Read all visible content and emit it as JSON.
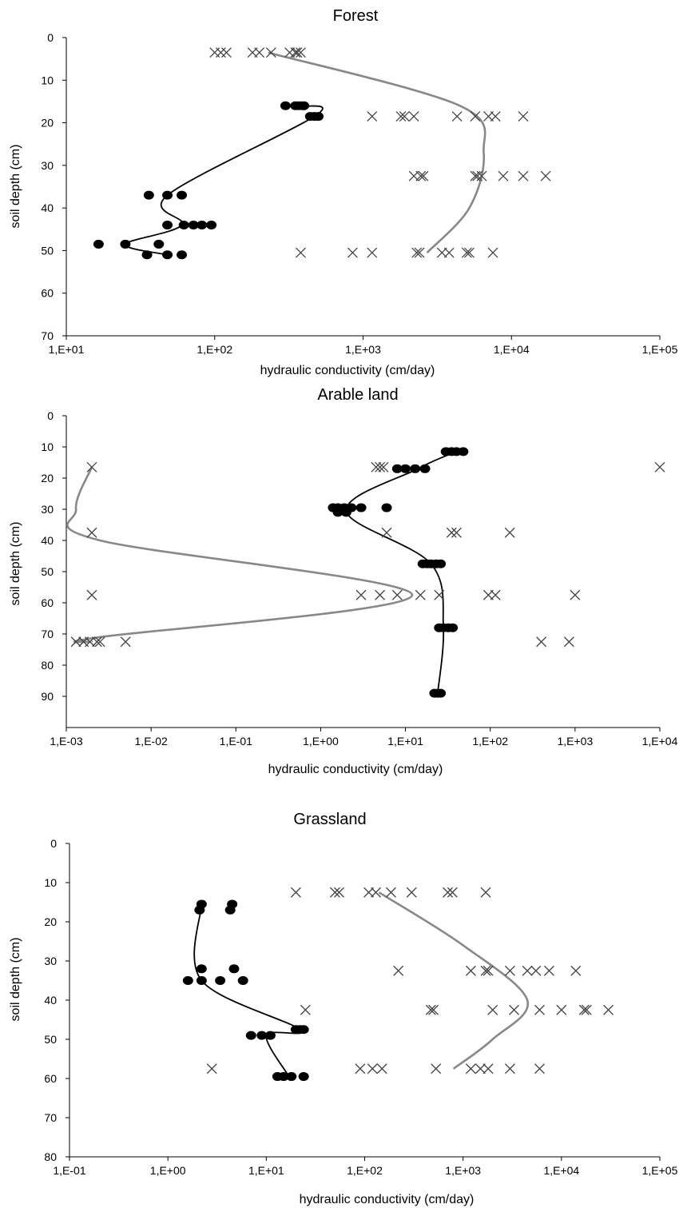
{
  "colors": {
    "measured": "#000000",
    "fitted": "#888888",
    "cross": "#444444"
  },
  "chart_data": [
    {
      "type": "scatter",
      "title": "Forest",
      "xlabel": "hydraulic conductivity (cm/day)",
      "ylabel": "soil depth (cm)",
      "x_scale": "log",
      "xlim": [
        10,
        100000
      ],
      "ylim": [
        0,
        70
      ],
      "x_ticks": [
        10,
        100,
        1000,
        10000,
        100000
      ],
      "x_tick_labels": [
        "1,E+01",
        "1,E+02",
        "1,E+03",
        "1,E+04",
        "1,E+05"
      ],
      "y_ticks": [
        0,
        10,
        20,
        30,
        40,
        50,
        60,
        70
      ],
      "y_tick_labels": [
        "0",
        "10",
        "20",
        "30",
        "40",
        "50",
        "60",
        "70"
      ],
      "series": [
        {
          "marker": "dot",
          "points": [
            [
              300,
              16
            ],
            [
              350,
              16
            ],
            [
              370,
              16
            ],
            [
              390,
              16
            ],
            [
              400,
              16
            ],
            [
              440,
              18.5
            ],
            [
              470,
              18.5
            ],
            [
              500,
              18.5
            ],
            [
              36,
              37
            ],
            [
              48,
              37
            ],
            [
              60,
              37
            ],
            [
              48,
              44
            ],
            [
              62,
              44
            ],
            [
              72,
              44
            ],
            [
              82,
              44
            ],
            [
              95,
              44
            ],
            [
              16.5,
              48.5
            ],
            [
              25,
              48.5
            ],
            [
              42,
              48.5
            ],
            [
              35,
              51
            ],
            [
              48,
              51
            ],
            [
              60,
              51
            ]
          ]
        },
        {
          "marker": "line",
          "points": [
            [
              400,
              16
            ],
            [
              470,
              18.5
            ],
            [
              48,
              37
            ],
            [
              60,
              44
            ],
            [
              25,
              48.5
            ],
            [
              48,
              51
            ]
          ]
        },
        {
          "marker": "cross",
          "points": [
            [
              100,
              3.5
            ],
            [
              110,
              3.5
            ],
            [
              120,
              3.5
            ],
            [
              180,
              3.5
            ],
            [
              200,
              3.5
            ],
            [
              240,
              3.5
            ],
            [
              320,
              3.5
            ],
            [
              350,
              3.5
            ],
            [
              360,
              3.5
            ],
            [
              380,
              3.5
            ],
            [
              1150,
              18.5
            ],
            [
              1800,
              18.5
            ],
            [
              1900,
              18.5
            ],
            [
              2200,
              18.5
            ],
            [
              4300,
              18.5
            ],
            [
              5700,
              18.5
            ],
            [
              7000,
              18.5
            ],
            [
              7800,
              18.5
            ],
            [
              12000,
              18.5
            ],
            [
              2200,
              32.5
            ],
            [
              2450,
              32.5
            ],
            [
              2550,
              32.5
            ],
            [
              5700,
              32.5
            ],
            [
              5900,
              32.5
            ],
            [
              6300,
              32.5
            ],
            [
              8800,
              32.5
            ],
            [
              12000,
              32.5
            ],
            [
              17000,
              32.5
            ],
            [
              380,
              50.5
            ],
            [
              850,
              50.5
            ],
            [
              1150,
              50.5
            ],
            [
              2300,
              50.5
            ],
            [
              2400,
              50.5
            ],
            [
              3400,
              50.5
            ],
            [
              3800,
              50.5
            ],
            [
              5000,
              50.5
            ],
            [
              5200,
              50.5
            ],
            [
              7500,
              50.5
            ]
          ]
        },
        {
          "marker": "curve",
          "points": [
            [
              230,
              3.5
            ],
            [
              4500,
              16
            ],
            [
              6500,
              27
            ],
            [
              5200,
              40
            ],
            [
              2700,
              50.5
            ]
          ]
        }
      ]
    },
    {
      "type": "scatter",
      "title": "Arable land",
      "xlabel": "hydraulic conductivity (cm/day)",
      "ylabel": "soil depth (cm)",
      "x_scale": "log",
      "xlim": [
        0.001,
        10000
      ],
      "ylim": [
        0,
        100
      ],
      "x_ticks": [
        0.001,
        0.01,
        0.1,
        1,
        10,
        100,
        1000,
        10000
      ],
      "x_tick_labels": [
        "1,E-03",
        "1,E-02",
        "1,E-01",
        "1,E+00",
        "1,E+01",
        "1,E+02",
        "1,E+03",
        "1,E+04"
      ],
      "y_ticks": [
        0,
        10,
        20,
        30,
        40,
        50,
        60,
        70,
        80,
        90
      ],
      "y_tick_labels": [
        "0",
        "10",
        "20",
        "30",
        "40",
        "50",
        "60",
        "70",
        "80",
        "90"
      ],
      "series": [
        {
          "marker": "dot",
          "points": [
            [
              30,
              11.5
            ],
            [
              35,
              11.5
            ],
            [
              40,
              11.5
            ],
            [
              48,
              11.5
            ],
            [
              8,
              17
            ],
            [
              10,
              17
            ],
            [
              13,
              17
            ],
            [
              17,
              17
            ],
            [
              1.4,
              29.5
            ],
            [
              1.6,
              29.5
            ],
            [
              1.9,
              29.5
            ],
            [
              2.3,
              29.5
            ],
            [
              3,
              29.5
            ],
            [
              6,
              29.5
            ],
            [
              1.6,
              31
            ],
            [
              2,
              31
            ],
            [
              16,
              47.5
            ],
            [
              18,
              47.5
            ],
            [
              20,
              47.5
            ],
            [
              23,
              47.5
            ],
            [
              26,
              47.5
            ],
            [
              25,
              68
            ],
            [
              28,
              68
            ],
            [
              32,
              68
            ],
            [
              36,
              68
            ],
            [
              22,
              89
            ],
            [
              24,
              89
            ],
            [
              26,
              89
            ]
          ]
        },
        {
          "marker": "line",
          "points": [
            [
              40,
              11.5
            ],
            [
              14,
              17
            ],
            [
              2,
              30.5
            ],
            [
              20,
              47.5
            ],
            [
              28,
              68
            ],
            [
              24,
              89
            ]
          ]
        },
        {
          "marker": "cross",
          "points": [
            [
              0.002,
              16.5
            ],
            [
              4.5,
              16.5
            ],
            [
              5,
              16.5
            ],
            [
              5.5,
              16.5
            ],
            [
              10000,
              16.5
            ],
            [
              0.002,
              37.5
            ],
            [
              6,
              37.5
            ],
            [
              35,
              37.5
            ],
            [
              40,
              37.5
            ],
            [
              170,
              37.5
            ],
            [
              0.002,
              57.5
            ],
            [
              3,
              57.5
            ],
            [
              5,
              57.5
            ],
            [
              8,
              57.5
            ],
            [
              15,
              57.5
            ],
            [
              25,
              57.5
            ],
            [
              95,
              57.5
            ],
            [
              115,
              57.5
            ],
            [
              1000,
              57.5
            ],
            [
              0.0013,
              72.5
            ],
            [
              0.0016,
              72.5
            ],
            [
              0.0019,
              72.5
            ],
            [
              0.0023,
              72.5
            ],
            [
              0.0025,
              72.5
            ],
            [
              0.005,
              72.5
            ],
            [
              400,
              72.5
            ],
            [
              850,
              72.5
            ]
          ]
        },
        {
          "marker": "curve",
          "points": [
            [
              0.002,
              16.5
            ],
            [
              0.0013,
              30
            ],
            [
              0.0025,
              40
            ],
            [
              12,
              57.5
            ],
            [
              0.0025,
              71
            ],
            [
              0.002,
              72.5
            ]
          ]
        }
      ]
    },
    {
      "type": "scatter",
      "title": "Grassland",
      "xlabel": "hydraulic conductivity (cm/day)",
      "ylabel": "soil depth (cm)",
      "x_scale": "log",
      "xlim": [
        0.1,
        100000
      ],
      "ylim": [
        0,
        80
      ],
      "x_ticks": [
        0.1,
        1,
        10,
        100,
        1000,
        10000,
        100000
      ],
      "x_tick_labels": [
        "1,E-01",
        "1,E+00",
        "1,E+01",
        "1,E+02",
        "1,E+03",
        "1,E+04",
        "1,E+05"
      ],
      "y_ticks": [
        0,
        10,
        20,
        30,
        40,
        50,
        60,
        70,
        80
      ],
      "y_tick_labels": [
        "0",
        "10",
        "20",
        "30",
        "40",
        "50",
        "60",
        "70",
        "80"
      ],
      "series": [
        {
          "marker": "dot",
          "points": [
            [
              2.2,
              15.5
            ],
            [
              4.5,
              15.5
            ],
            [
              2.1,
              17
            ],
            [
              4.3,
              17
            ],
            [
              2.2,
              32
            ],
            [
              4.7,
              32
            ],
            [
              1.6,
              35
            ],
            [
              2.2,
              35
            ],
            [
              3.4,
              35
            ],
            [
              5.8,
              35
            ],
            [
              20,
              47.5
            ],
            [
              22,
              47.5
            ],
            [
              24,
              47.5
            ],
            [
              7,
              49
            ],
            [
              9,
              49
            ],
            [
              11,
              49
            ],
            [
              13,
              59.5
            ],
            [
              15,
              59.5
            ],
            [
              18,
              59.5
            ],
            [
              24,
              59.5
            ]
          ]
        },
        {
          "marker": "line",
          "points": [
            [
              2.2,
              15.5
            ],
            [
              2.2,
              35
            ],
            [
              22,
              47.5
            ],
            [
              10,
              49
            ],
            [
              17,
              59.5
            ]
          ]
        },
        {
          "marker": "cross",
          "points": [
            [
              20,
              12.5
            ],
            [
              50,
              12.5
            ],
            [
              55,
              12.5
            ],
            [
              110,
              12.5
            ],
            [
              130,
              12.5
            ],
            [
              185,
              12.5
            ],
            [
              300,
              12.5
            ],
            [
              700,
              12.5
            ],
            [
              780,
              12.5
            ],
            [
              1700,
              12.5
            ],
            [
              220,
              32.5
            ],
            [
              1200,
              32.5
            ],
            [
              1700,
              32.5
            ],
            [
              1800,
              32.5
            ],
            [
              3000,
              32.5
            ],
            [
              4500,
              32.5
            ],
            [
              5500,
              32.5
            ],
            [
              7500,
              32.5
            ],
            [
              14000,
              32.5
            ],
            [
              25,
              42.5
            ],
            [
              470,
              42.5
            ],
            [
              500,
              42.5
            ],
            [
              2000,
              42.5
            ],
            [
              3300,
              42.5
            ],
            [
              6000,
              42.5
            ],
            [
              10000,
              42.5
            ],
            [
              17000,
              42.5
            ],
            [
              18000,
              42.5
            ],
            [
              30000,
              42.5
            ],
            [
              2.8,
              57.5
            ],
            [
              90,
              57.5
            ],
            [
              120,
              57.5
            ],
            [
              150,
              57.5
            ],
            [
              530,
              57.5
            ],
            [
              1200,
              57.5
            ],
            [
              1500,
              57.5
            ],
            [
              1800,
              57.5
            ],
            [
              3000,
              57.5
            ],
            [
              6000,
              57.5
            ]
          ]
        },
        {
          "marker": "curve",
          "points": [
            [
              140,
              12.5
            ],
            [
              1000,
              26
            ],
            [
              4500,
              40
            ],
            [
              2000,
              50
            ],
            [
              800,
              57.5
            ]
          ]
        }
      ]
    }
  ]
}
